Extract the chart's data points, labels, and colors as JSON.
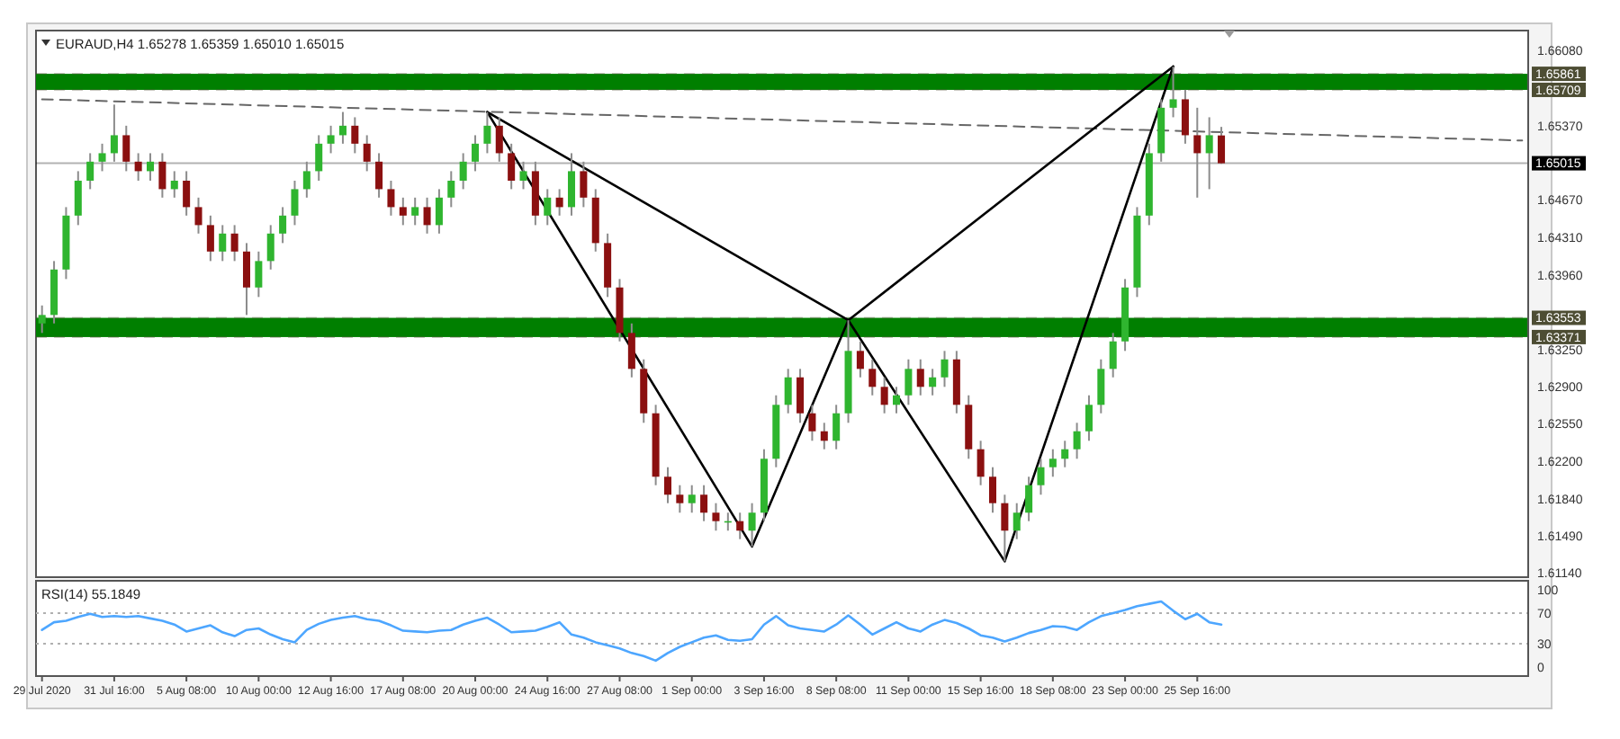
{
  "chart_data": [
    {
      "type": "candlestick",
      "title": "EURAUD,H4  1.65278 1.65359 1.65010 1.65015",
      "categories": [
        null,
        null,
        null,
        null,
        null,
        null,
        null,
        null,
        null,
        null,
        null,
        null,
        null,
        null,
        null,
        null,
        null,
        null,
        null,
        null,
        null,
        null,
        null,
        null,
        null,
        null,
        null,
        null,
        null,
        null,
        null,
        null,
        null,
        null,
        null,
        null,
        null,
        null,
        null,
        null,
        null,
        null,
        null,
        null,
        null,
        null,
        null,
        null,
        null,
        null,
        null,
        null,
        null,
        null,
        null,
        null,
        null,
        null,
        null,
        null,
        null,
        null,
        null,
        null,
        null,
        null,
        null,
        null,
        null,
        null,
        null,
        null,
        null,
        null,
        null,
        null,
        null,
        null,
        null,
        null,
        null,
        null,
        null,
        null,
        null,
        null,
        null,
        null,
        null,
        null,
        null,
        null,
        null,
        null,
        null,
        null,
        null,
        null,
        null,
        null,
        null,
        null,
        null,
        null,
        null,
        null,
        null,
        null,
        null,
        null,
        null,
        null,
        null,
        null,
        null,
        null,
        null,
        null,
        null,
        null,
        null,
        null,
        null,
        null
      ],
      "ohlc": [
        [
          1.635,
          1.6367,
          1.6341,
          1.6358
        ],
        [
          1.6358,
          1.6409,
          1.635,
          1.6401
        ],
        [
          1.6401,
          1.646,
          1.6392,
          1.6452
        ],
        [
          1.6452,
          1.6494,
          1.6443,
          1.6485
        ],
        [
          1.6485,
          1.6511,
          1.6477,
          1.6503
        ],
        [
          1.6503,
          1.652,
          1.6494,
          1.6511
        ],
        [
          1.6511,
          1.6557,
          1.6503,
          1.6528
        ],
        [
          1.6528,
          1.6537,
          1.6494,
          1.6503
        ],
        [
          1.6503,
          1.6511,
          1.6485,
          1.6494
        ],
        [
          1.6494,
          1.6511,
          1.6485,
          1.6503
        ],
        [
          1.6503,
          1.6511,
          1.6469,
          1.6477
        ],
        [
          1.6477,
          1.6494,
          1.6469,
          1.6485
        ],
        [
          1.6485,
          1.6494,
          1.6452,
          1.646
        ],
        [
          1.646,
          1.6469,
          1.6435,
          1.6443
        ],
        [
          1.6443,
          1.6452,
          1.6409,
          1.6418
        ],
        [
          1.6418,
          1.6443,
          1.6409,
          1.6435
        ],
        [
          1.6435,
          1.6443,
          1.6409,
          1.6418
        ],
        [
          1.6418,
          1.6426,
          1.6358,
          1.6384
        ],
        [
          1.6384,
          1.6418,
          1.6375,
          1.6409
        ],
        [
          1.6409,
          1.6443,
          1.6401,
          1.6435
        ],
        [
          1.6435,
          1.646,
          1.6426,
          1.6452
        ],
        [
          1.6452,
          1.6485,
          1.6443,
          1.6477
        ],
        [
          1.6477,
          1.6503,
          1.6469,
          1.6494
        ],
        [
          1.6494,
          1.6528,
          1.6485,
          1.652
        ],
        [
          1.652,
          1.6537,
          1.6511,
          1.6528
        ],
        [
          1.6528,
          1.655,
          1.652,
          1.6537
        ],
        [
          1.6537,
          1.6545,
          1.6511,
          1.652
        ],
        [
          1.652,
          1.6528,
          1.6494,
          1.6503
        ],
        [
          1.6503,
          1.6511,
          1.6469,
          1.6477
        ],
        [
          1.6477,
          1.6485,
          1.6452,
          1.646
        ],
        [
          1.646,
          1.6469,
          1.6443,
          1.6452
        ],
        [
          1.6452,
          1.6469,
          1.6443,
          1.646
        ],
        [
          1.646,
          1.6469,
          1.6435,
          1.6443
        ],
        [
          1.6443,
          1.6477,
          1.6435,
          1.6469
        ],
        [
          1.6469,
          1.6494,
          1.646,
          1.6485
        ],
        [
          1.6485,
          1.6511,
          1.6477,
          1.6503
        ],
        [
          1.6503,
          1.6528,
          1.6494,
          1.652
        ],
        [
          1.652,
          1.655,
          1.6511,
          1.6537
        ],
        [
          1.6537,
          1.6545,
          1.6503,
          1.6511
        ],
        [
          1.6511,
          1.652,
          1.6477,
          1.6485
        ],
        [
          1.6485,
          1.6503,
          1.6477,
          1.6494
        ],
        [
          1.6494,
          1.6503,
          1.6443,
          1.6452
        ],
        [
          1.6452,
          1.6477,
          1.6443,
          1.6469
        ],
        [
          1.6469,
          1.6477,
          1.6452,
          1.646
        ],
        [
          1.646,
          1.6511,
          1.6452,
          1.6494
        ],
        [
          1.6494,
          1.6503,
          1.646,
          1.6469
        ],
        [
          1.6469,
          1.6477,
          1.6418,
          1.6426
        ],
        [
          1.6426,
          1.6435,
          1.6375,
          1.6384
        ],
        [
          1.6384,
          1.6392,
          1.6333,
          1.6341
        ],
        [
          1.6341,
          1.635,
          1.6299,
          1.6307
        ],
        [
          1.6307,
          1.6316,
          1.6256,
          1.6265
        ],
        [
          1.6265,
          1.6273,
          1.6197,
          1.6205
        ],
        [
          1.6205,
          1.6214,
          1.618,
          1.6188
        ],
        [
          1.6188,
          1.6197,
          1.6171,
          1.618
        ],
        [
          1.618,
          1.6197,
          1.6171,
          1.6188
        ],
        [
          1.6188,
          1.6197,
          1.6163,
          1.6171
        ],
        [
          1.6171,
          1.618,
          1.6154,
          1.6163
        ],
        [
          1.6163,
          1.6171,
          1.6154,
          1.6163
        ],
        [
          1.6163,
          1.6171,
          1.6146,
          1.6154
        ],
        [
          1.6154,
          1.618,
          1.6139,
          1.6171
        ],
        [
          1.6171,
          1.6231,
          1.6163,
          1.6222
        ],
        [
          1.6222,
          1.6282,
          1.6214,
          1.6273
        ],
        [
          1.6273,
          1.6307,
          1.6265,
          1.6299
        ],
        [
          1.6299,
          1.6307,
          1.6256,
          1.6265
        ],
        [
          1.6265,
          1.6273,
          1.6239,
          1.6248
        ],
        [
          1.6248,
          1.6256,
          1.6231,
          1.6239
        ],
        [
          1.6239,
          1.6273,
          1.6231,
          1.6265
        ],
        [
          1.6265,
          1.6353,
          1.6256,
          1.6324
        ],
        [
          1.6324,
          1.6333,
          1.6299,
          1.6307
        ],
        [
          1.6307,
          1.6316,
          1.6282,
          1.629
        ],
        [
          1.629,
          1.6299,
          1.6265,
          1.6273
        ],
        [
          1.6273,
          1.629,
          1.6265,
          1.6282
        ],
        [
          1.6282,
          1.6316,
          1.6273,
          1.6307
        ],
        [
          1.6307,
          1.6316,
          1.6282,
          1.629
        ],
        [
          1.629,
          1.6307,
          1.6282,
          1.6299
        ],
        [
          1.6299,
          1.6324,
          1.629,
          1.6316
        ],
        [
          1.6316,
          1.6324,
          1.6265,
          1.6273
        ],
        [
          1.6273,
          1.6282,
          1.6222,
          1.6231
        ],
        [
          1.6231,
          1.6239,
          1.6197,
          1.6205
        ],
        [
          1.6205,
          1.6214,
          1.6171,
          1.618
        ],
        [
          1.618,
          1.6188,
          1.6125,
          1.6154
        ],
        [
          1.6154,
          1.618,
          1.6146,
          1.6171
        ],
        [
          1.6171,
          1.6205,
          1.6163,
          1.6197
        ],
        [
          1.6197,
          1.6222,
          1.6188,
          1.6214
        ],
        [
          1.6214,
          1.6231,
          1.6205,
          1.6222
        ],
        [
          1.6222,
          1.6239,
          1.6214,
          1.6231
        ],
        [
          1.6231,
          1.6256,
          1.6222,
          1.6248
        ],
        [
          1.6248,
          1.6282,
          1.6239,
          1.6273
        ],
        [
          1.6273,
          1.6316,
          1.6265,
          1.6307
        ],
        [
          1.6307,
          1.6341,
          1.6299,
          1.6333
        ],
        [
          1.6333,
          1.6392,
          1.6324,
          1.6384
        ],
        [
          1.6384,
          1.646,
          1.6375,
          1.6452
        ],
        [
          1.6452,
          1.652,
          1.6443,
          1.6511
        ],
        [
          1.6511,
          1.6562,
          1.6503,
          1.6554
        ],
        [
          1.6554,
          1.6593,
          1.6545,
          1.6562
        ],
        [
          1.6562,
          1.6571,
          1.652,
          1.6528
        ],
        [
          1.6528,
          1.6554,
          1.6469,
          1.6511
        ],
        [
          1.6511,
          1.6545,
          1.6477,
          1.6528
        ],
        [
          1.65278,
          1.65359,
          1.6501,
          1.65015
        ],
        null,
        null,
        null,
        null,
        null,
        null,
        null,
        null,
        null,
        null,
        null,
        null,
        null,
        null,
        null,
        null,
        null,
        null,
        null,
        null,
        null,
        null,
        null,
        null,
        null
      ],
      "series": [
        {
          "type": "line",
          "color": "#666666",
          "line_style": "dashed",
          "values": [
            1.6562,
            null,
            null,
            null,
            null,
            null,
            null,
            null,
            null,
            null,
            null,
            null,
            null,
            null,
            null,
            null,
            null,
            null,
            null,
            null,
            null,
            null,
            null,
            null,
            null,
            null,
            null,
            null,
            null,
            null,
            null,
            null,
            null,
            null,
            null,
            null,
            null,
            null,
            null,
            null,
            null,
            null,
            null,
            null,
            null,
            null,
            null,
            null,
            null,
            null,
            null,
            null,
            null,
            null,
            null,
            null,
            null,
            null,
            null,
            null,
            null,
            null,
            null,
            null,
            null,
            null,
            null,
            null,
            null,
            null,
            null,
            null,
            null,
            null,
            null,
            null,
            null,
            null,
            null,
            null,
            null,
            null,
            null,
            null,
            null,
            null,
            null,
            null,
            null,
            null,
            null,
            null,
            null,
            null,
            null,
            null,
            null,
            null,
            null,
            null,
            null,
            null,
            null,
            null,
            null,
            null,
            null,
            null,
            null,
            null,
            null,
            null,
            null,
            null,
            null,
            null,
            null,
            null,
            null,
            null,
            null,
            null,
            null,
            1.6523
          ]
        },
        {
          "type": "line",
          "color": "#000000",
          "line_style": "solid",
          "values": [
            null,
            null,
            null,
            null,
            null,
            null,
            null,
            null,
            null,
            null,
            null,
            null,
            null,
            null,
            null,
            null,
            null,
            null,
            null,
            null,
            null,
            null,
            null,
            null,
            null,
            null,
            null,
            null,
            null,
            null,
            null,
            null,
            null,
            null,
            null,
            null,
            null,
            1.655,
            null,
            null,
            null,
            null,
            null,
            null,
            null,
            null,
            null,
            null,
            null,
            null,
            null,
            null,
            null,
            null,
            null,
            null,
            null,
            null,
            null,
            1.6139,
            null,
            null,
            null,
            null,
            null,
            null,
            null,
            1.6353,
            null,
            null,
            null,
            null,
            null,
            null,
            null,
            null,
            null,
            null,
            null,
            null,
            1.6125,
            null,
            null,
            null,
            null,
            null,
            null,
            null,
            null,
            null,
            null,
            null,
            null,
            null,
            1.6593,
            null,
            null,
            null,
            null,
            null,
            null,
            null,
            null,
            null,
            null,
            null,
            null,
            null,
            null,
            null,
            null,
            null,
            null,
            null,
            null,
            null,
            null,
            null,
            null,
            null,
            null,
            null,
            null,
            null
          ]
        },
        {
          "type": "line",
          "color": "#000000",
          "line_style": "solid",
          "values": [
            null,
            null,
            null,
            null,
            null,
            null,
            null,
            null,
            null,
            null,
            null,
            null,
            null,
            null,
            null,
            null,
            null,
            null,
            null,
            null,
            null,
            null,
            null,
            null,
            null,
            null,
            null,
            null,
            null,
            null,
            null,
            null,
            null,
            null,
            null,
            null,
            null,
            1.655,
            null,
            null,
            null,
            null,
            null,
            null,
            null,
            null,
            null,
            null,
            null,
            null,
            null,
            null,
            null,
            null,
            null,
            null,
            null,
            null,
            null,
            null,
            null,
            null,
            null,
            null,
            null,
            null,
            null,
            1.6353,
            null,
            null,
            null,
            null,
            null,
            null,
            null,
            null,
            null,
            null,
            null,
            null,
            null,
            null,
            null,
            null,
            null,
            null,
            null,
            null,
            null,
            null,
            null,
            null,
            null,
            null,
            1.6593,
            null,
            null,
            null,
            null,
            null,
            null,
            null,
            null,
            null,
            null,
            null,
            null,
            null,
            null,
            null,
            null,
            null,
            null,
            null,
            null,
            null,
            null,
            null,
            null,
            null,
            null,
            null,
            null,
            null
          ]
        }
      ],
      "ylim": [
        1.611,
        1.6627
      ],
      "yticks": [
        {
          "value": 1.6608,
          "label": "1.66080"
        },
        {
          "value": 1.6537,
          "label": "1.65370"
        },
        {
          "value": 1.6467,
          "label": "1.64670"
        },
        {
          "value": 1.6431,
          "label": "1.64310"
        },
        {
          "value": 1.6396,
          "label": "1.63960"
        },
        {
          "value": 1.6325,
          "label": "1.63250"
        },
        {
          "value": 1.629,
          "label": "1.62900"
        },
        {
          "value": 1.6255,
          "label": "1.62550"
        },
        {
          "value": 1.622,
          "label": "1.62200"
        },
        {
          "value": 1.6184,
          "label": "1.61840"
        },
        {
          "value": 1.6149,
          "label": "1.61490"
        },
        {
          "value": 1.6114,
          "label": "1.61140"
        }
      ],
      "bands": [
        {
          "axis": "y",
          "from": 1.65709,
          "to": 1.65861,
          "color": "#007f00"
        },
        {
          "axis": "y",
          "from": 1.63371,
          "to": 1.63553,
          "color": "#007f00"
        }
      ],
      "ref_lines": [
        {
          "axis": "y",
          "value": 1.65861,
          "label": "1.65861",
          "color": "#4d4d33",
          "line_style": "dashed"
        },
        {
          "axis": "y",
          "value": 1.65709,
          "label": "1.65709",
          "color": "#4d4d33",
          "line_style": "dashed"
        },
        {
          "axis": "y",
          "value": 1.65015,
          "label": "1.65015",
          "color": "#000000",
          "line_style": "solid"
        },
        {
          "axis": "y",
          "value": 1.63553,
          "label": "1.63553",
          "color": "#4d4d33",
          "line_style": "dashed"
        },
        {
          "axis": "y",
          "value": 1.63371,
          "label": "1.63371",
          "color": "#4d4d33",
          "line_style": "dashed"
        }
      ],
      "tick_labels": "y",
      "grid": false
    },
    {
      "type": "line",
      "title": "RSI(14) 55.1849",
      "categories": [
        "29 Jul 2020",
        null,
        null,
        null,
        null,
        null,
        "31 Jul 16:00",
        null,
        null,
        null,
        null,
        null,
        "5 Aug 08:00",
        null,
        null,
        null,
        null,
        null,
        "10 Aug 00:00",
        null,
        null,
        null,
        null,
        null,
        "12 Aug 16:00",
        null,
        null,
        null,
        null,
        null,
        "17 Aug 08:00",
        null,
        null,
        null,
        null,
        null,
        "20 Aug 00:00",
        null,
        null,
        null,
        null,
        null,
        "24 Aug 16:00",
        null,
        null,
        null,
        null,
        null,
        "27 Aug 08:00",
        null,
        null,
        null,
        null,
        null,
        "1 Sep 00:00",
        null,
        null,
        null,
        null,
        null,
        "3 Sep 16:00",
        null,
        null,
        null,
        null,
        null,
        "8 Sep 08:00",
        null,
        null,
        null,
        null,
        null,
        "11 Sep 00:00",
        null,
        null,
        null,
        null,
        null,
        "15 Sep 16:00",
        null,
        null,
        null,
        null,
        null,
        "18 Sep 08:00",
        null,
        null,
        null,
        null,
        null,
        "23 Sep 00:00",
        null,
        null,
        null,
        null,
        null,
        "25 Sep 16:00",
        null,
        null,
        null,
        null,
        null,
        null,
        null,
        null,
        null,
        null,
        null,
        null,
        null,
        null,
        null,
        null,
        null,
        null,
        null,
        null,
        null,
        null,
        null,
        null,
        null,
        null,
        null
      ],
      "series": [
        {
          "color": "#4da6ff",
          "values": [
            48,
            58,
            60,
            65,
            69,
            65,
            66,
            65,
            66,
            63,
            60,
            55,
            46,
            50,
            54,
            45,
            40,
            48,
            50,
            42,
            36,
            32,
            48,
            56,
            61,
            64,
            66,
            62,
            60,
            54,
            47,
            46,
            45,
            47,
            48,
            55,
            60,
            64,
            55,
            45,
            46,
            47,
            52,
            58,
            42,
            38,
            32,
            28,
            24,
            18,
            14,
            8,
            18,
            26,
            32,
            38,
            41,
            35,
            34,
            36,
            55,
            66,
            54,
            50,
            48,
            46,
            55,
            67,
            55,
            42,
            50,
            58,
            50,
            46,
            55,
            61,
            57,
            50,
            41,
            38,
            33,
            38,
            44,
            48,
            53,
            52,
            48,
            58,
            66,
            70,
            74,
            79,
            82,
            85,
            73,
            62,
            69,
            58,
            55,
            null,
            null,
            null,
            null,
            null,
            null,
            null,
            null,
            null,
            null,
            null,
            null,
            null,
            null,
            null,
            null,
            null,
            null,
            null,
            null,
            null,
            null,
            null,
            null,
            null
          ]
        }
      ],
      "ylim": [
        -12,
        112
      ],
      "yticks": [
        0,
        30,
        70,
        100
      ],
      "ref_lines": [
        {
          "axis": "y",
          "value": 30,
          "color": "#b0b0b0",
          "line_style": "dotted"
        },
        {
          "axis": "y",
          "value": 70,
          "color": "#b0b0b0",
          "line_style": "dotted"
        }
      ],
      "grid": false
    }
  ]
}
